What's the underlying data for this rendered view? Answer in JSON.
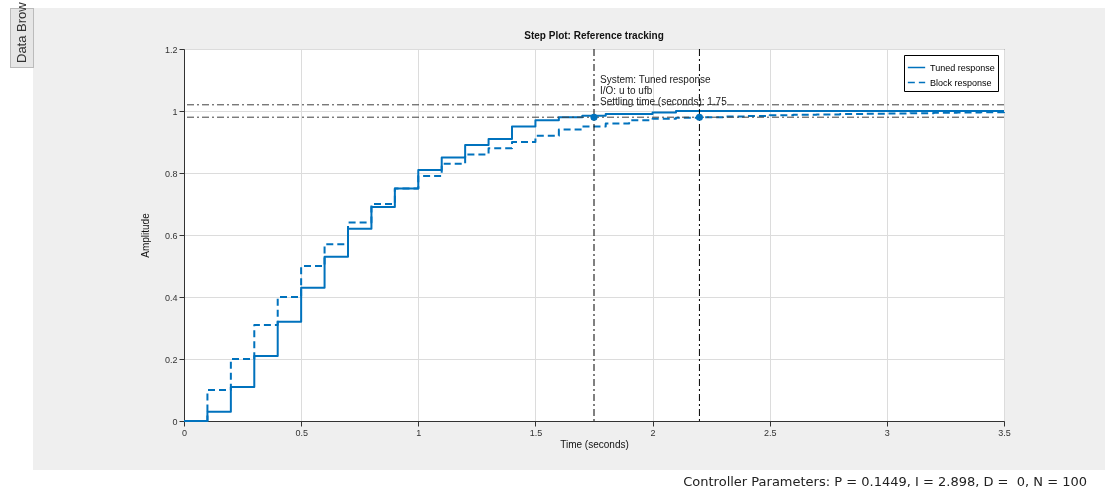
{
  "chart_data": {
    "type": "step",
    "title": "Step Plot: Reference tracking",
    "xlabel": "Time (seconds)",
    "ylabel": "Amplitude",
    "x": [
      0,
      0.1,
      0.2,
      0.3,
      0.4,
      0.5,
      0.6,
      0.7,
      0.8,
      0.9,
      1.0,
      1.1,
      1.2,
      1.3,
      1.4,
      1.5,
      1.6,
      1.7,
      1.8,
      1.9,
      2.0,
      2.1,
      2.2,
      2.3,
      2.4,
      2.5,
      2.6,
      2.7,
      2.8,
      2.9,
      3.0,
      3.1,
      3.2,
      3.3,
      3.4,
      3.5
    ],
    "series": [
      {
        "name": "Tuned response",
        "color": "#0072bd",
        "line_style": "solid",
        "values": [
          0,
          0.03,
          0.11,
          0.21,
          0.32,
          0.43,
          0.53,
          0.62,
          0.69,
          0.75,
          0.81,
          0.85,
          0.89,
          0.91,
          0.95,
          0.97,
          0.98,
          0.985,
          0.99,
          0.99,
          0.995,
          1.0,
          1.0,
          1.0,
          1.0,
          1.0,
          1.0,
          1.0,
          1.0,
          1.0,
          1.0,
          1.0,
          1.0,
          1.0,
          1.0,
          1.0
        ]
      },
      {
        "name": "Block response",
        "color": "#0072bd",
        "line_style": "dashed",
        "values": [
          0,
          0.1,
          0.2,
          0.31,
          0.4,
          0.5,
          0.57,
          0.64,
          0.7,
          0.75,
          0.79,
          0.83,
          0.86,
          0.88,
          0.9,
          0.92,
          0.94,
          0.95,
          0.96,
          0.97,
          0.975,
          0.978,
          0.98,
          0.982,
          0.984,
          0.986,
          0.988,
          0.989,
          0.99,
          0.991,
          0.992,
          0.993,
          0.994,
          0.995,
          0.996,
          0.997
        ]
      },
      {
        "type": "scatter",
        "color": "#0072bd",
        "marker": "circle",
        "x": [
          1.75,
          2.2
        ],
        "values": [
          0.98,
          0.98
        ]
      }
    ],
    "xlim": [
      0,
      3.5
    ],
    "xticks": [
      0,
      0.5,
      1,
      1.5,
      2,
      2.5,
      3,
      3.5
    ],
    "ylim": [
      0,
      1.2
    ],
    "yticks": [
      0,
      0.2,
      0.4,
      0.6,
      0.8,
      1,
      1.2
    ],
    "grid": true,
    "legend": "top right",
    "marker": "none",
    "ref_lines": [
      {
        "axis": "y",
        "value": 1.02,
        "color": "#404040",
        "line_style": "dashdot"
      },
      {
        "axis": "y",
        "value": 0.98,
        "color": "#404040",
        "line_style": "dashdot"
      },
      {
        "axis": "x",
        "value": 1.75,
        "color": "#000000",
        "line_style": "dashdot"
      },
      {
        "axis": "x",
        "value": 2.2,
        "color": "#000000",
        "line_style": "dashdot"
      }
    ],
    "annotations": [
      "Data Brow",
      {
        "text": "System: Tuned response\nI/O: u to ufb\nSettling time (seconds): 1.75",
        "x": 1.75,
        "y": 0.98
      },
      "Controller Parameters: P = 0.1449, I = 2.898, D =  0, N = 100"
    ]
  }
}
